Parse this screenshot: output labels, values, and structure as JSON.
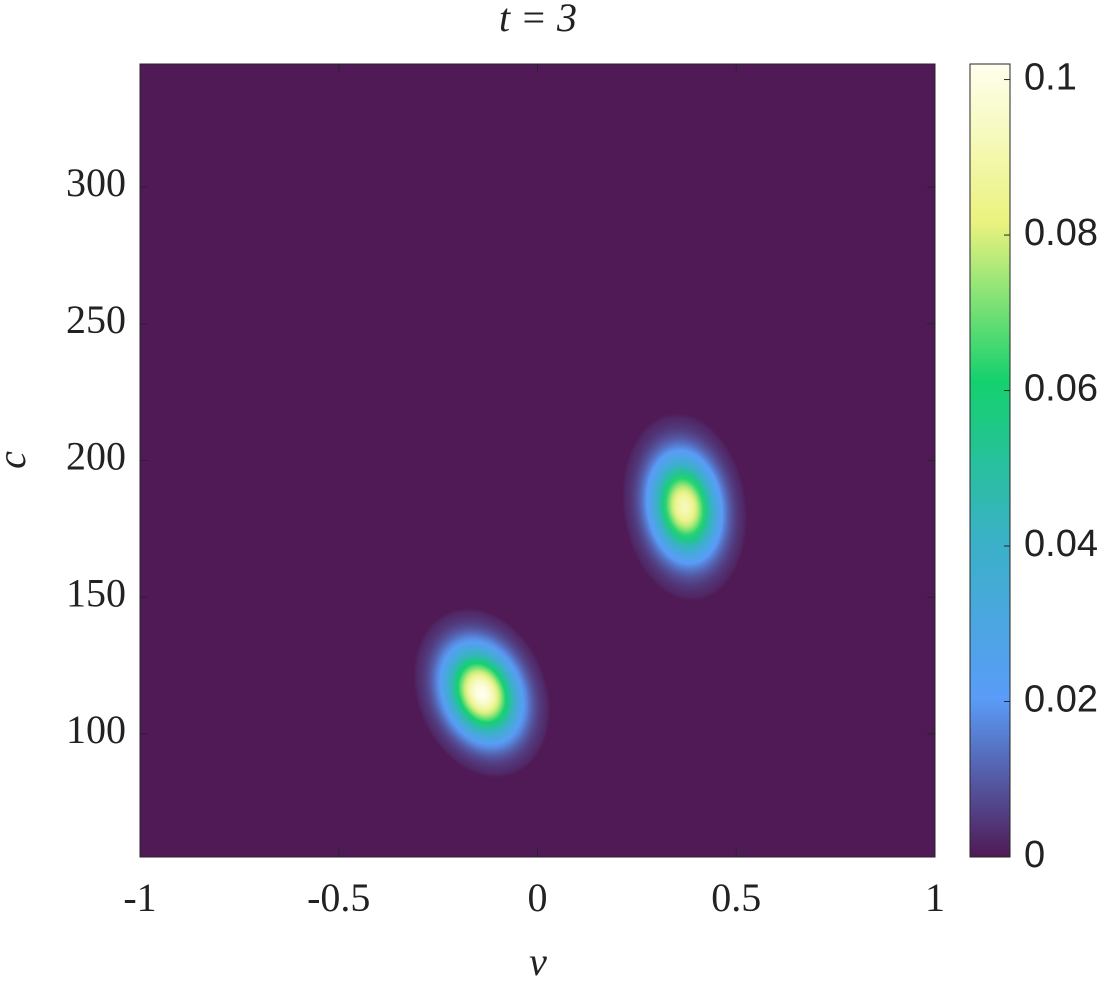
{
  "chart_data": {
    "type": "contour",
    "title": "t = 3",
    "xlabel": "v",
    "ylabel": "c",
    "x": [
      -0.14,
      0.37
    ],
    "y": [
      115,
      183
    ],
    "values": [
      0.102,
      0.092
    ],
    "xlim": [
      -1,
      1
    ],
    "xticks": [
      -1,
      -0.5,
      0,
      0.5,
      1
    ],
    "ylim": [
      55,
      345
    ],
    "yticks": [
      100,
      150,
      200,
      250,
      300
    ],
    "clim": [
      0,
      0.102
    ],
    "cticks": [
      0,
      0.02,
      0.04,
      0.06,
      0.08,
      0.1
    ],
    "colormap": [
      "#4f1a55",
      "#5a9cf8",
      "#3ab1c7",
      "#14d16e",
      "#eaf27e",
      "#ffffee"
    ]
  }
}
